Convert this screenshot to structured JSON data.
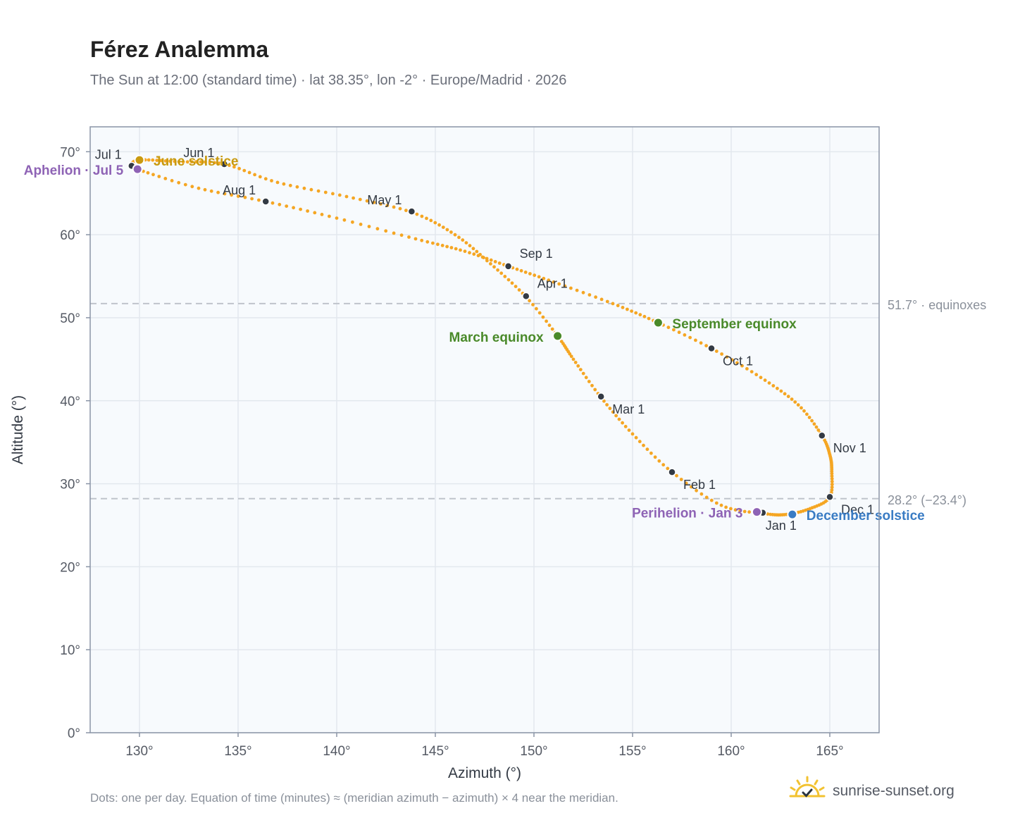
{
  "title": "Férez Analemma",
  "subtitle": "The Sun at 12:00 (standard time) · lat 38.35°, lon -2° · Europe/Madrid · 2026",
  "footer": "Dots: one per day. Equation of time (minutes) ≈ (meridian azimuth − azimuth) × 4 near the meridian.",
  "brand": {
    "name": "sunrise-sunset.org",
    "icon": "sunrise-logo-icon"
  },
  "chart_data": {
    "type": "scatter",
    "xlabel": "Azimuth (°)",
    "ylabel": "Altitude (°)",
    "xlim": [
      127.5,
      167.5
    ],
    "ylim": [
      0,
      73
    ],
    "xticks": [
      130,
      135,
      140,
      145,
      150,
      155,
      160,
      165
    ],
    "yticks": [
      0,
      10,
      20,
      30,
      40,
      50,
      60,
      70
    ],
    "tick_suffix": "°",
    "grid": true,
    "colors": {
      "path": "#f5a623",
      "month": "#333a44",
      "aphelion": "#8e63b5",
      "perihelion": "#8e63b5",
      "equinox": "#4a8a2a",
      "june_solstice": "#c99a10",
      "december_solstice": "#3a7cc4",
      "reference": "#bfc4cc",
      "plot_bg": "#f7fafd"
    },
    "reference_lines": [
      {
        "y": 51.7,
        "label": "51.7° · equinoxes"
      },
      {
        "y": 28.2,
        "label": "28.2° (−23.4°)"
      }
    ],
    "path_points": [
      [
        161.7,
        26.4
      ],
      [
        159.5,
        27.4
      ],
      [
        157.0,
        31.4
      ],
      [
        155.0,
        36.0
      ],
      [
        153.4,
        40.4
      ],
      [
        152.0,
        45.0
      ],
      [
        151.2,
        47.8
      ],
      [
        149.6,
        52.5
      ],
      [
        147.8,
        56.5
      ],
      [
        146.0,
        60.0
      ],
      [
        143.8,
        62.7
      ],
      [
        140.5,
        64.6
      ],
      [
        137.0,
        66.3
      ],
      [
        134.3,
        68.5
      ],
      [
        132.0,
        68.8
      ],
      [
        130.0,
        69.0
      ],
      [
        129.6,
        68.3
      ],
      [
        130.0,
        67.8
      ],
      [
        133.0,
        65.6
      ],
      [
        136.4,
        64.0
      ],
      [
        140.0,
        62.0
      ],
      [
        144.0,
        59.5
      ],
      [
        146.5,
        58.0
      ],
      [
        148.7,
        56.2
      ],
      [
        151.0,
        54.3
      ],
      [
        154.0,
        51.7
      ],
      [
        156.3,
        49.4
      ],
      [
        159.0,
        46.3
      ],
      [
        161.5,
        42.8
      ],
      [
        163.4,
        39.5
      ],
      [
        164.6,
        35.8
      ],
      [
        165.0,
        33.5
      ],
      [
        165.1,
        31.5
      ],
      [
        165.0,
        28.4
      ],
      [
        164.0,
        27.0
      ],
      [
        162.8,
        26.3
      ],
      [
        161.7,
        26.4
      ]
    ],
    "months": [
      {
        "label": "Jan 1",
        "x": 161.6,
        "y": 26.5,
        "pos": "below"
      },
      {
        "label": "Feb 1",
        "x": 157.0,
        "y": 31.4,
        "pos": "below-right"
      },
      {
        "label": "Mar 1",
        "x": 153.4,
        "y": 40.5,
        "pos": "below-right"
      },
      {
        "label": "Apr 1",
        "x": 149.6,
        "y": 52.6,
        "pos": "upper-right"
      },
      {
        "label": "May 1",
        "x": 143.8,
        "y": 62.8,
        "pos": "upper-left"
      },
      {
        "label": "Jun 1",
        "x": 134.3,
        "y": 68.5,
        "pos": "upper-left"
      },
      {
        "label": "Jul 1",
        "x": 129.6,
        "y": 68.3,
        "pos": "upper-left"
      },
      {
        "label": "Aug 1",
        "x": 136.4,
        "y": 64.0,
        "pos": "upper-left"
      },
      {
        "label": "Sep 1",
        "x": 148.7,
        "y": 56.2,
        "pos": "upper-right"
      },
      {
        "label": "Oct 1",
        "x": 159.0,
        "y": 46.3,
        "pos": "below-right"
      },
      {
        "label": "Nov 1",
        "x": 164.6,
        "y": 35.8,
        "pos": "below-right"
      },
      {
        "label": "Dec 1",
        "x": 165.0,
        "y": 28.4,
        "pos": "below-right"
      }
    ],
    "events": [
      {
        "label": "Aphelion · Jul 5",
        "x": 129.9,
        "y": 67.9,
        "color_key": "aphelion",
        "pos": "left"
      },
      {
        "label": "June solstice",
        "x": 130.0,
        "y": 69.0,
        "color_key": "june_solstice",
        "pos": "right"
      },
      {
        "label": "March equinox",
        "x": 151.2,
        "y": 47.8,
        "color_key": "equinox",
        "pos": "left"
      },
      {
        "label": "September equinox",
        "x": 156.3,
        "y": 49.4,
        "color_key": "equinox",
        "pos": "right"
      },
      {
        "label": "Perihelion · Jan 3",
        "x": 161.3,
        "y": 26.6,
        "color_key": "perihelion",
        "pos": "left"
      },
      {
        "label": "December solstice",
        "x": 163.1,
        "y": 26.3,
        "color_key": "december_solstice",
        "pos": "right"
      }
    ]
  }
}
